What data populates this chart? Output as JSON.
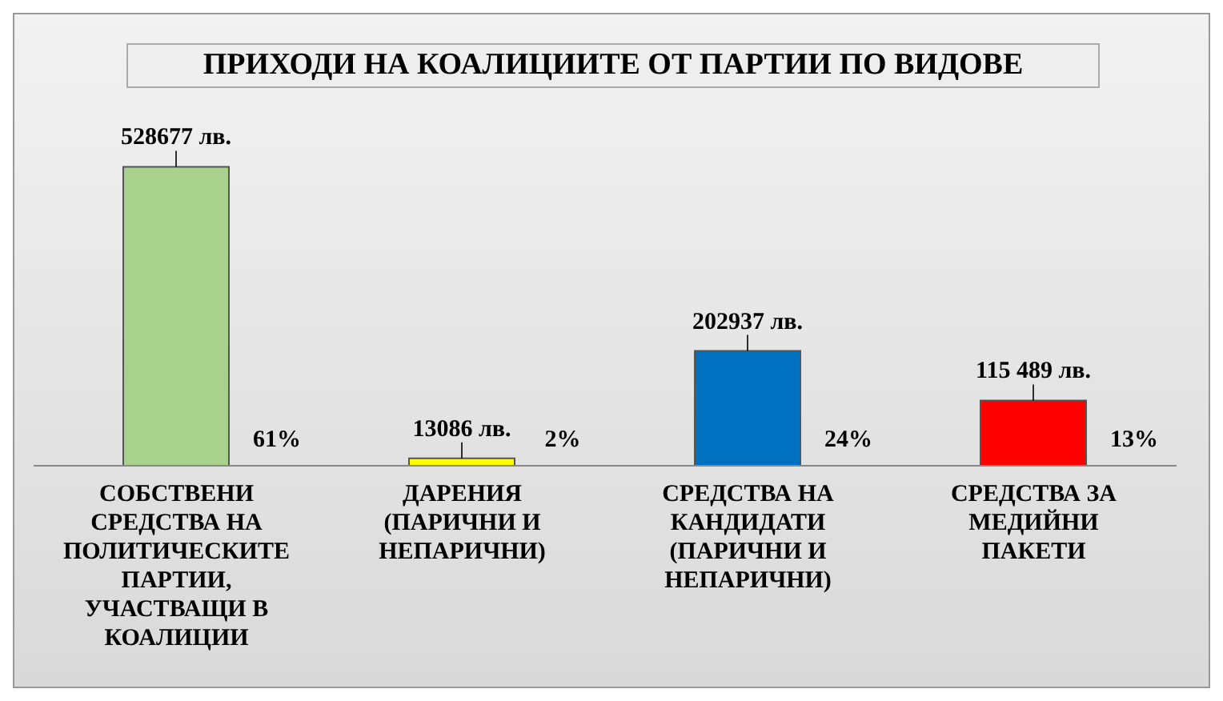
{
  "chart_data": {
    "type": "bar",
    "title": "ПРИХОДИ НА КОАЛИЦИИТЕ ОТ ПАРТИИ ПО ВИДОВЕ",
    "categories": [
      "СОБСТВЕНИ СРЕДСТВА НА ПОЛИТИЧЕСКИТЕ ПАРТИИ, УЧАСТВАЩИ В КОАЛИЦИИ",
      "ДАРЕНИЯ (ПАРИЧНИ И НЕПАРИЧНИ)",
      "СРЕДСТВА НА КАНДИДАТИ (ПАРИЧНИ И НЕПАРИЧНИ)",
      "СРЕДСТВА ЗА МЕДИЙНИ ПАКЕТИ"
    ],
    "values": [
      528677,
      13086,
      202937,
      115489
    ],
    "colors": [
      "#a9d18e",
      "#ffff00",
      "#0070c0",
      "#ff0000"
    ],
    "value_labels": [
      "528677 лв.",
      "13086 лв.",
      "202937 лв.",
      "115 489 лв."
    ],
    "annotations": [
      "61%",
      "2%",
      "24%",
      "13%"
    ]
  }
}
